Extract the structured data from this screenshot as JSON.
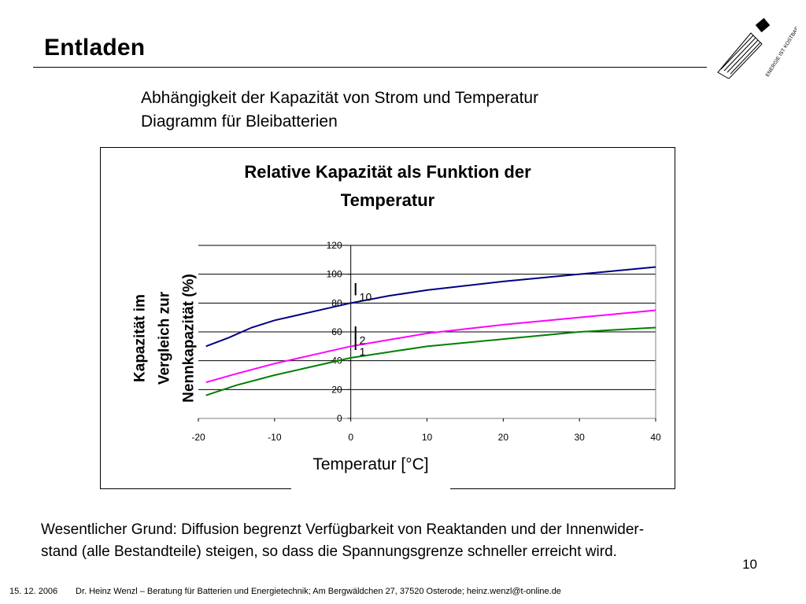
{
  "slide": {
    "title": "Entladen",
    "subtitle_lines": [
      "Abhängigkeit der Kapazität von Strom und Temperatur",
      "Diagramm für Bleibatterien"
    ],
    "logo_text": "ENERGIE IST KOSTBAR",
    "body_lines": [
      "Wesentlicher Grund: Diffusion begrenzt Verfügbarkeit von Reaktanden und der Innenwider-",
      "stand (alle Bestandteile) steigen, so dass die Spannungsgrenze schneller erreicht wird."
    ],
    "page_number": "10",
    "footer_date": "15. 12. 2006",
    "footer_text": "Dr. Heinz Wenzl – Beratung für Batterien und Energietechnik; Am Bergwäldchen 27, 37520 Osterode; heinz.wenzl@t-online.de"
  },
  "chart_data": {
    "type": "line",
    "title_lines": [
      "Relative Kapazität als Funktion der",
      "Temperatur"
    ],
    "xlabel": "Temperatur [°C]",
    "ylabel_lines": [
      "Kapazität im",
      "Vergleich zur",
      "Nennkapazität (%)"
    ],
    "xlim": [
      -20,
      40
    ],
    "ylim": [
      0,
      120
    ],
    "x_ticks": [
      -20,
      -10,
      0,
      10,
      20,
      30,
      40
    ],
    "y_ticks": [
      0,
      20,
      40,
      60,
      80,
      100,
      120
    ],
    "grid": true,
    "legend": "none",
    "series": [
      {
        "label_main": "I",
        "label_sub": "10",
        "color": "#000080",
        "x": [
          -19,
          -16,
          -13,
          -10,
          -5,
          0,
          5,
          10,
          20,
          30,
          40
        ],
        "y": [
          50,
          56,
          63,
          68,
          74,
          80,
          85,
          89,
          95,
          100,
          105
        ]
      },
      {
        "label_main": "I",
        "label_sub": "2",
        "color": "#ff00ff",
        "x": [
          -19,
          -15,
          -10,
          -5,
          0,
          10,
          20,
          30,
          40
        ],
        "y": [
          25,
          31,
          38,
          44,
          50,
          59,
          65,
          70,
          75
        ]
      },
      {
        "label_main": "I",
        "label_sub": "1",
        "color": "#008000",
        "x": [
          -19,
          -15,
          -10,
          -5,
          0,
          10,
          20,
          30,
          40
        ],
        "y": [
          16,
          23,
          30,
          36,
          42,
          50,
          55,
          60,
          63
        ]
      }
    ]
  }
}
